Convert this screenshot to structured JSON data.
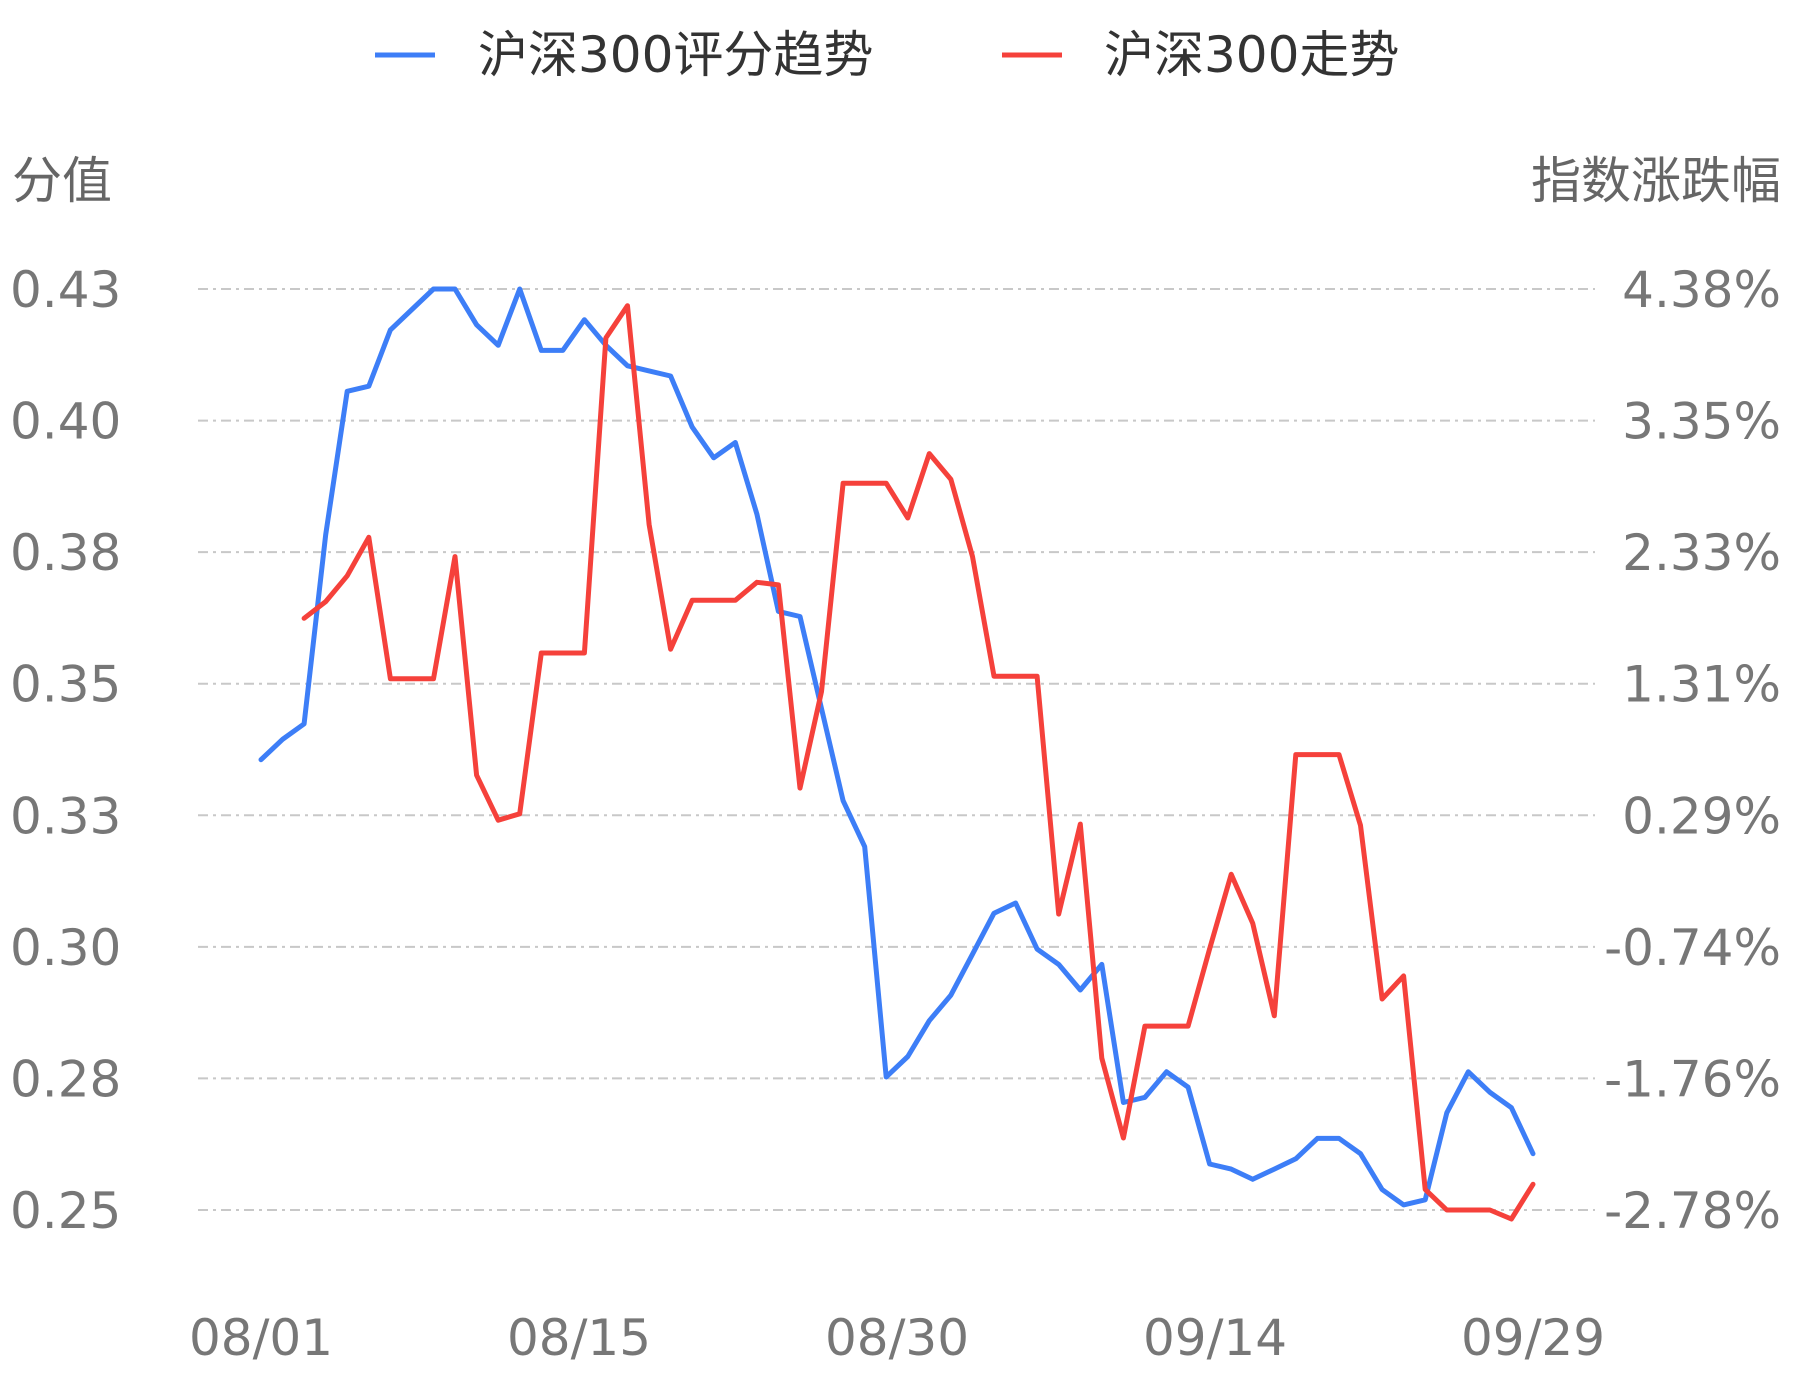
{
  "chart_data": {
    "type": "line",
    "legend": {
      "placement": "top-center",
      "entries": [
        {
          "name": "沪深300评分趋势",
          "color": "#3d7ef7"
        },
        {
          "name": "沪深300走势",
          "color": "#f5413b"
        }
      ]
    },
    "ylabel_left": "分值",
    "ylabel_right": "指数涨跌幅",
    "y_left_ticks": [
      "0.43",
      "0.40",
      "0.38",
      "0.35",
      "0.33",
      "0.30",
      "0.28",
      "0.25"
    ],
    "y_right_ticks": [
      "4.38%",
      "3.35%",
      "2.33%",
      "1.31%",
      "0.29%",
      "-0.74%",
      "-1.76%",
      "-2.78%"
    ],
    "ylim_left": [
      0.25,
      0.43
    ],
    "ylim_right": [
      -2.78,
      4.38
    ],
    "grid": true,
    "x_tick_labels": [
      "08/01",
      "08/15",
      "08/30",
      "09/14",
      "09/29"
    ],
    "x_count": 60,
    "series": [
      {
        "name": "沪深300评分趋势",
        "axis": "left",
        "color": "#3d7ef7",
        "values": [
          0.338,
          0.342,
          0.345,
          0.382,
          0.41,
          0.411,
          0.422,
          0.426,
          0.43,
          0.43,
          0.423,
          0.419,
          0.43,
          0.418,
          0.418,
          0.424,
          0.419,
          0.415,
          0.414,
          0.413,
          0.403,
          0.397,
          0.4,
          0.386,
          0.367,
          0.366,
          0.348,
          0.33,
          0.321,
          0.276,
          0.28,
          0.287,
          0.292,
          0.3,
          0.308,
          0.31,
          0.301,
          0.298,
          0.293,
          0.298,
          0.271,
          0.272,
          0.277,
          0.274,
          0.259,
          0.258,
          0.256,
          0.258,
          0.26,
          0.264,
          0.264,
          0.261,
          0.254,
          0.251,
          0.252,
          0.269,
          0.277,
          0.273,
          0.27,
          0.261
        ]
      },
      {
        "name": "沪深300走势",
        "axis": "right",
        "color": "#f5413b",
        "values": [
          null,
          null,
          1.82,
          1.95,
          2.15,
          2.45,
          1.35,
          1.35,
          1.35,
          2.3,
          0.6,
          0.25,
          0.3,
          1.55,
          1.55,
          1.55,
          4.0,
          4.25,
          2.55,
          1.58,
          1.96,
          1.96,
          1.96,
          2.1,
          2.08,
          0.5,
          1.25,
          2.87,
          2.87,
          2.87,
          2.6,
          3.1,
          2.9,
          2.3,
          1.37,
          1.37,
          1.37,
          -0.48,
          0.22,
          -1.6,
          -2.22,
          -1.35,
          -1.35,
          -1.35,
          -0.75,
          -0.17,
          -0.55,
          -1.27,
          0.76,
          0.76,
          0.76,
          0.21,
          -1.14,
          -0.96,
          -2.62,
          -2.78,
          -2.78,
          -2.78,
          -2.85,
          -2.58
        ]
      }
    ]
  }
}
